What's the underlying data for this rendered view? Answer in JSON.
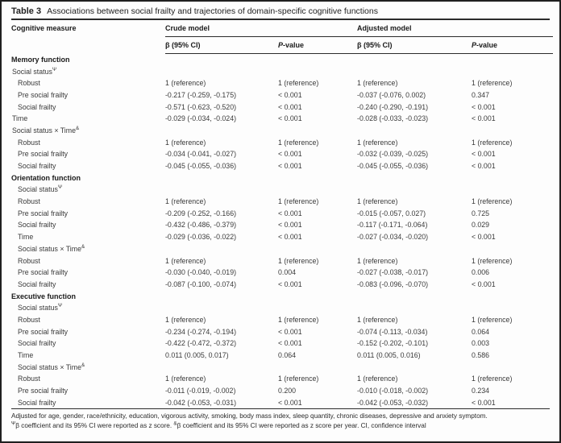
{
  "caption": {
    "label": "Table 3",
    "text": "Associations between social frailty and trajectories of domain-specific cognitive functions"
  },
  "table": {
    "header": {
      "col1": "Cognitive measure",
      "group_crude": "Crude model",
      "group_adjusted": "Adjusted model",
      "beta_crude": "β (95% CI)",
      "beta_adjusted": "β (95% CI)",
      "p_italic": "P",
      "p_rest": "-value"
    },
    "rows": [
      {
        "label": "Memory function",
        "sup": "",
        "bold": true,
        "indent": 0,
        "cells": [
          "",
          "",
          "",
          ""
        ]
      },
      {
        "label": "Social status",
        "sup": "Ψ",
        "bold": false,
        "indent": 0,
        "cells": [
          "",
          "",
          "",
          ""
        ]
      },
      {
        "label": "Robust",
        "sup": "",
        "bold": false,
        "indent": 1,
        "cells": [
          "1 (reference)",
          "1 (reference)",
          "1 (reference)",
          "1 (reference)"
        ]
      },
      {
        "label": "Pre social frailty",
        "sup": "",
        "bold": false,
        "indent": 1,
        "cells": [
          "-0.217 (-0.259, -0.175)",
          "< 0.001",
          "-0.037 (-0.076, 0.002)",
          "0.347"
        ]
      },
      {
        "label": "Social frailty",
        "sup": "",
        "bold": false,
        "indent": 1,
        "cells": [
          "-0.571 (-0.623, -0.520)",
          "< 0.001",
          "-0.240 (-0.290, -0.191)",
          "< 0.001"
        ]
      },
      {
        "label": "Time",
        "sup": "",
        "bold": false,
        "indent": 0,
        "cells": [
          "-0.029 (-0.034, -0.024)",
          "< 0.001",
          "-0.028 (-0.033, -0.023)",
          "< 0.001"
        ]
      },
      {
        "label": "Social status × Time",
        "sup": "&",
        "bold": false,
        "indent": 0,
        "cells": [
          "",
          "",
          "",
          ""
        ]
      },
      {
        "label": "Robust",
        "sup": "",
        "bold": false,
        "indent": 1,
        "cells": [
          "1 (reference)",
          "1 (reference)",
          "1 (reference)",
          "1 (reference)"
        ]
      },
      {
        "label": "Pre social frailty",
        "sup": "",
        "bold": false,
        "indent": 1,
        "cells": [
          "-0.034 (-0.041, -0.027)",
          "< 0.001",
          "-0.032 (-0.039, -0.025)",
          "< 0.001"
        ]
      },
      {
        "label": "Social frailty",
        "sup": "",
        "bold": false,
        "indent": 1,
        "cells": [
          "-0.045 (-0.055, -0.036)",
          "< 0.001",
          "-0.045 (-0.055, -0.036)",
          "< 0.001"
        ]
      },
      {
        "label": "Orientation function",
        "sup": "",
        "bold": true,
        "indent": 0,
        "cells": [
          "",
          "",
          "",
          ""
        ]
      },
      {
        "label": "Social status",
        "sup": "Ψ",
        "bold": false,
        "indent": 1,
        "cells": [
          "",
          "",
          "",
          ""
        ]
      },
      {
        "label": "Robust",
        "sup": "",
        "bold": false,
        "indent": 1,
        "cells": [
          "1 (reference)",
          "1 (reference)",
          "1 (reference)",
          "1 (reference)"
        ]
      },
      {
        "label": "Pre social frailty",
        "sup": "",
        "bold": false,
        "indent": 1,
        "cells": [
          "-0.209 (-0.252, -0.166)",
          "< 0.001",
          "-0.015 (-0.057, 0.027)",
          "0.725"
        ]
      },
      {
        "label": "Social frailty",
        "sup": "",
        "bold": false,
        "indent": 1,
        "cells": [
          "-0.432 (-0.486, -0.379)",
          "< 0.001",
          "-0.117 (-0.171, -0.064)",
          "0.029"
        ]
      },
      {
        "label": "Time",
        "sup": "",
        "bold": false,
        "indent": 1,
        "cells": [
          "-0.029 (-0.036, -0.022)",
          "< 0.001",
          "-0.027 (-0.034, -0.020)",
          "< 0.001"
        ]
      },
      {
        "label": "Social status × Time",
        "sup": "&",
        "bold": false,
        "indent": 1,
        "cells": [
          "",
          "",
          "",
          ""
        ]
      },
      {
        "label": "Robust",
        "sup": "",
        "bold": false,
        "indent": 1,
        "cells": [
          "1 (reference)",
          "1 (reference)",
          "1 (reference)",
          "1 (reference)"
        ]
      },
      {
        "label": "Pre social frailty",
        "sup": "",
        "bold": false,
        "indent": 1,
        "cells": [
          "-0.030 (-0.040, -0.019)",
          "0.004",
          "-0.027 (-0.038, -0.017)",
          "0.006"
        ]
      },
      {
        "label": "Social frailty",
        "sup": "",
        "bold": false,
        "indent": 1,
        "cells": [
          "-0.087 (-0.100, -0.074)",
          "< 0.001",
          "-0.083 (-0.096, -0.070)",
          "< 0.001"
        ]
      },
      {
        "label": "Executive function",
        "sup": "",
        "bold": true,
        "indent": 0,
        "cells": [
          "",
          "",
          "",
          ""
        ]
      },
      {
        "label": "Social status",
        "sup": "Ψ",
        "bold": false,
        "indent": 1,
        "cells": [
          "",
          "",
          "",
          ""
        ]
      },
      {
        "label": "Robust",
        "sup": "",
        "bold": false,
        "indent": 1,
        "cells": [
          "1 (reference)",
          "1 (reference)",
          "1 (reference)",
          "1 (reference)"
        ]
      },
      {
        "label": "Pre social frailty",
        "sup": "",
        "bold": false,
        "indent": 1,
        "cells": [
          "-0.234 (-0.274, -0.194)",
          "< 0.001",
          "-0.074 (-0.113, -0.034)",
          "0.064"
        ]
      },
      {
        "label": "Social frailty",
        "sup": "",
        "bold": false,
        "indent": 1,
        "cells": [
          "-0.422 (-0.472, -0.372)",
          "< 0.001",
          "-0.152 (-0.202, -0.101)",
          "0.003"
        ]
      },
      {
        "label": "Time",
        "sup": "",
        "bold": false,
        "indent": 1,
        "cells": [
          "0.011 (0.005, 0.017)",
          "0.064",
          "0.011 (0.005, 0.016)",
          "0.586"
        ]
      },
      {
        "label": "Social status × Time",
        "sup": "&",
        "bold": false,
        "indent": 1,
        "cells": [
          "",
          "",
          "",
          ""
        ]
      },
      {
        "label": "Robust",
        "sup": "",
        "bold": false,
        "indent": 1,
        "cells": [
          "1 (reference)",
          "1 (reference)",
          "1 (reference)",
          "1 (reference)"
        ]
      },
      {
        "label": "Pre social frailty",
        "sup": "",
        "bold": false,
        "indent": 1,
        "cells": [
          "-0.011 (-0.019, -0.002)",
          "0.200",
          "-0.010 (-0.018, -0.002)",
          "0.234"
        ]
      },
      {
        "label": "Social frailty",
        "sup": "",
        "bold": false,
        "indent": 1,
        "cells": [
          "-0.042 (-0.053, -0.031)",
          "< 0.001",
          "-0.042 (-0.053, -0.032)",
          "< 0.001"
        ]
      }
    ],
    "footnotes": {
      "line1": "Adjusted for age, gender, race/ethnicity, education, vigorous activity, smoking, body mass index, sleep quantity, chronic diseases, depressive and anxiety symptom.",
      "sup1": "Ψ",
      "line2a": "β coefficient and its 95% CI were reported as z score. ",
      "sup2": "&",
      "line2b": "β coefficient and its 95% CI were reported as z score per year. CI, confidence interval"
    }
  }
}
